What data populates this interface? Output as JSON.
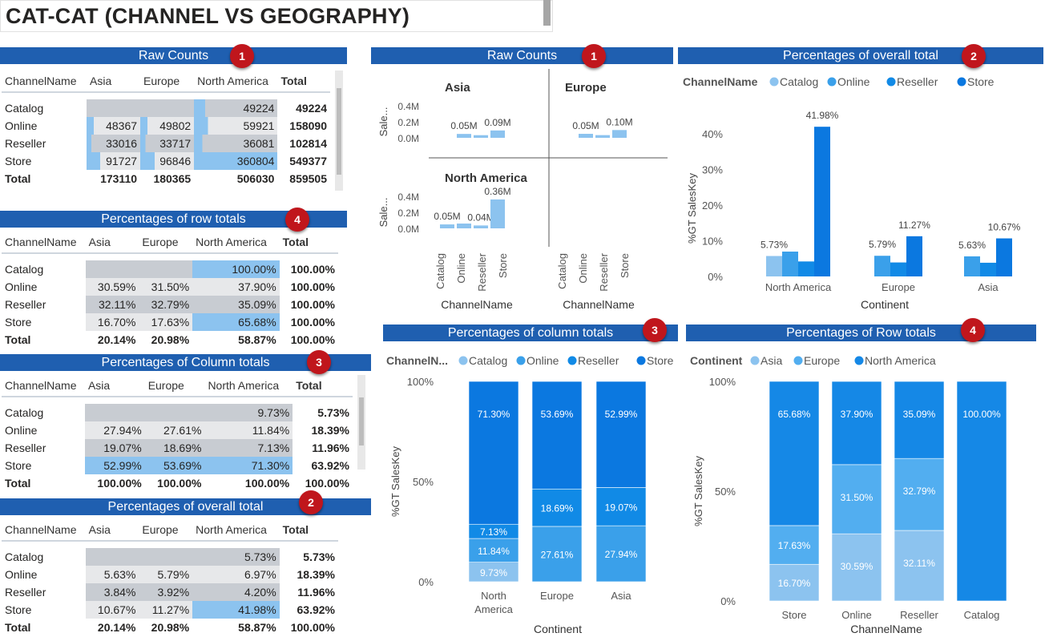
{
  "page_title": "CAT-CAT (CHANNEL VS GEOGRAPHY)",
  "colors": {
    "banner": "#1f5fb0",
    "badge": "#c0161c",
    "catalog": "#8cc3ef",
    "online": "#3aa0ea",
    "reseller": "#118ae6",
    "store": "#0b78e0",
    "asia": "#8cc3ef",
    "europe": "#52aef0",
    "north_america": "#1588e6"
  },
  "tables": {
    "raw": {
      "title": "Raw Counts",
      "badge": "1",
      "columns": [
        "ChannelName",
        "Asia",
        "Europe",
        "North America",
        "Total"
      ],
      "rows": [
        [
          "Catalog",
          "",
          "",
          "49224",
          "49224"
        ],
        [
          "Online",
          "48367",
          "49802",
          "59921",
          "158090"
        ],
        [
          "Reseller",
          "33016",
          "33717",
          "36081",
          "102814"
        ],
        [
          "Store",
          "91727",
          "96846",
          "360804",
          "549377"
        ]
      ],
      "total": [
        "Total",
        "173110",
        "180365",
        "506030",
        "859505"
      ]
    },
    "row_pct": {
      "title": "Percentages of row totals",
      "badge": "4",
      "columns": [
        "ChannelName",
        "Asia",
        "Europe",
        "North America",
        "Total"
      ],
      "rows": [
        [
          "Catalog",
          "",
          "",
          "100.00%",
          "100.00%"
        ],
        [
          "Online",
          "30.59%",
          "31.50%",
          "37.90%",
          "100.00%"
        ],
        [
          "Reseller",
          "32.11%",
          "32.79%",
          "35.09%",
          "100.00%"
        ],
        [
          "Store",
          "16.70%",
          "17.63%",
          "65.68%",
          "100.00%"
        ]
      ],
      "total": [
        "Total",
        "20.14%",
        "20.98%",
        "58.87%",
        "100.00%"
      ]
    },
    "col_pct": {
      "title": "Percentages of Column totals",
      "badge": "3",
      "columns": [
        "ChannelName",
        "Asia",
        "Europe",
        "North America",
        "Total"
      ],
      "rows": [
        [
          "Catalog",
          "",
          "",
          "9.73%",
          "5.73%"
        ],
        [
          "Online",
          "27.94%",
          "27.61%",
          "11.84%",
          "18.39%"
        ],
        [
          "Reseller",
          "19.07%",
          "18.69%",
          "7.13%",
          "11.96%"
        ],
        [
          "Store",
          "52.99%",
          "53.69%",
          "71.30%",
          "63.92%"
        ]
      ],
      "total": [
        "Total",
        "100.00%",
        "100.00%",
        "100.00%",
        "100.00%"
      ]
    },
    "grand_pct": {
      "title": "Percentages of overall total",
      "badge": "2",
      "columns": [
        "ChannelName",
        "Asia",
        "Europe",
        "North America",
        "Total"
      ],
      "rows": [
        [
          "Catalog",
          "",
          "",
          "5.73%",
          "5.73%"
        ],
        [
          "Online",
          "5.63%",
          "5.79%",
          "6.97%",
          "18.39%"
        ],
        [
          "Reseller",
          "3.84%",
          "3.92%",
          "4.20%",
          "11.96%"
        ],
        [
          "Store",
          "10.67%",
          "11.27%",
          "41.98%",
          "63.92%"
        ]
      ],
      "total": [
        "Total",
        "20.14%",
        "20.98%",
        "58.87%",
        "100.00%"
      ]
    }
  },
  "chart_data": [
    {
      "type": "bar",
      "title": "Raw Counts",
      "badge": "1",
      "ylabel": "Sale...",
      "xlabel": "ChannelName",
      "categories": [
        "Catalog",
        "Online",
        "Reseller",
        "Store"
      ],
      "ylim": [
        0,
        400000
      ],
      "ticks": [
        "0.4M",
        "0.2M",
        "0.0M"
      ],
      "panels": [
        {
          "name": "Asia",
          "values": [
            0,
            48367,
            33016,
            91727
          ],
          "labels": [
            "",
            "0.05M",
            "",
            "0.09M"
          ]
        },
        {
          "name": "Europe",
          "values": [
            0,
            49802,
            33717,
            96846
          ],
          "labels": [
            "",
            "0.05M",
            "",
            "0.10M"
          ]
        },
        {
          "name": "North America",
          "values": [
            49224,
            59921,
            36081,
            360804
          ],
          "labels": [
            "0.05M",
            "",
            "0.04M",
            "0.36M"
          ]
        }
      ]
    },
    {
      "type": "bar",
      "title": "Percentages of overall total",
      "badge": "2",
      "legend_title": "ChannelName",
      "legend": [
        "Catalog",
        "Online",
        "Reseller",
        "Store"
      ],
      "legend_position": "top-left",
      "xlabel": "Continent",
      "ylabel": "%GT SalesKey",
      "categories": [
        "North America",
        "Europe",
        "Asia"
      ],
      "ylim": [
        0,
        45
      ],
      "ticks": [
        "0%",
        "10%",
        "20%",
        "30%",
        "40%"
      ],
      "series": [
        {
          "name": "Catalog",
          "values": [
            5.73,
            0,
            0
          ]
        },
        {
          "name": "Online",
          "values": [
            6.97,
            5.79,
            5.63
          ]
        },
        {
          "name": "Reseller",
          "values": [
            4.2,
            3.92,
            3.84
          ]
        },
        {
          "name": "Store",
          "values": [
            41.98,
            11.27,
            10.67
          ]
        }
      ],
      "data_labels": [
        [
          "5.73%",
          "41.98%"
        ],
        [
          "5.79%",
          "11.27%"
        ],
        [
          "5.63%",
          "10.67%"
        ]
      ]
    },
    {
      "type": "bar",
      "stacked": "100%",
      "title": "Percentages of column totals",
      "badge": "3",
      "legend_title": "ChannelN...",
      "legend": [
        "Catalog",
        "Online",
        "Reseller",
        "Store"
      ],
      "xlabel": "Continent",
      "ylabel": "%GT SalesKey",
      "categories": [
        "North America",
        "Europe",
        "Asia"
      ],
      "ticks": [
        "0%",
        "50%",
        "100%"
      ],
      "series": [
        {
          "name": "Catalog",
          "values": [
            9.73,
            0,
            0
          ]
        },
        {
          "name": "Online",
          "values": [
            11.84,
            27.61,
            27.94
          ]
        },
        {
          "name": "Reseller",
          "values": [
            7.13,
            18.69,
            19.07
          ]
        },
        {
          "name": "Store",
          "values": [
            71.3,
            53.69,
            52.99
          ]
        }
      ],
      "labels": [
        [
          "9.73%",
          "11.84%",
          "7.13%",
          "71.30%"
        ],
        [
          "",
          "27.61%",
          "18.69%",
          "53.69%"
        ],
        [
          "",
          "27.94%",
          "19.07%",
          "52.99%"
        ]
      ]
    },
    {
      "type": "bar",
      "stacked": "100%",
      "title": "Percentages of Row totals",
      "badge": "4",
      "legend_title": "Continent",
      "legend": [
        "Asia",
        "Europe",
        "North America"
      ],
      "xlabel": "ChannelName",
      "ylabel": "%GT SalesKey",
      "categories": [
        "Store",
        "Online",
        "Reseller",
        "Catalog"
      ],
      "ticks": [
        "0%",
        "50%",
        "100%"
      ],
      "series": [
        {
          "name": "Asia",
          "values": [
            16.7,
            30.59,
            32.11,
            0
          ]
        },
        {
          "name": "Europe",
          "values": [
            17.63,
            31.5,
            32.79,
            0
          ]
        },
        {
          "name": "North America",
          "values": [
            65.68,
            37.9,
            35.09,
            100.0
          ]
        }
      ],
      "labels": [
        [
          "16.70%",
          "17.63%",
          "65.68%"
        ],
        [
          "30.59%",
          "31.50%",
          "37.90%"
        ],
        [
          "32.11%",
          "32.79%",
          "35.09%"
        ],
        [
          "",
          "",
          "100.00%"
        ]
      ]
    }
  ]
}
